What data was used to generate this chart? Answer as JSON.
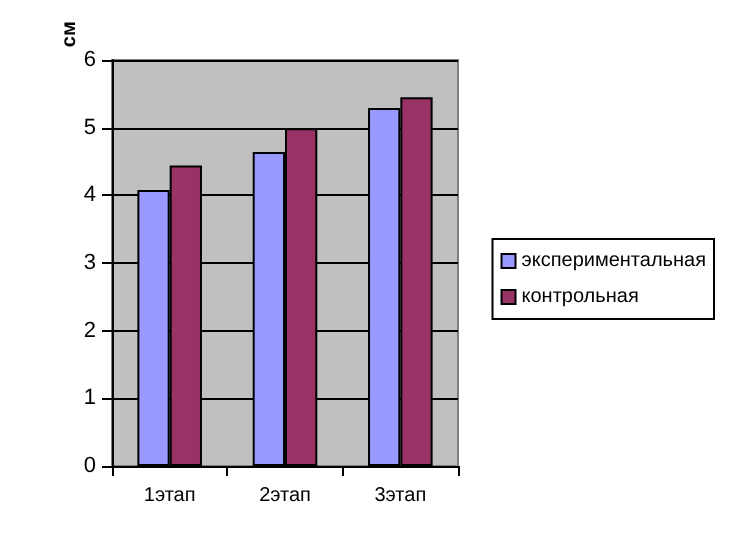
{
  "chart_data": {
    "type": "bar",
    "ylabel": "см",
    "categories": [
      "1этап",
      "2этап",
      "3этап"
    ],
    "series": [
      {
        "name": "экспериментальная",
        "color": "#9999ff",
        "values": [
          4.08,
          4.64,
          5.29
        ]
      },
      {
        "name": "контрольная",
        "color": "#993366",
        "values": [
          4.44,
          4.99,
          5.45
        ]
      }
    ],
    "ylim": [
      0,
      6
    ],
    "yticks": [
      0,
      1,
      2,
      3,
      4,
      5,
      6
    ],
    "grid": "y",
    "legend": "right"
  }
}
